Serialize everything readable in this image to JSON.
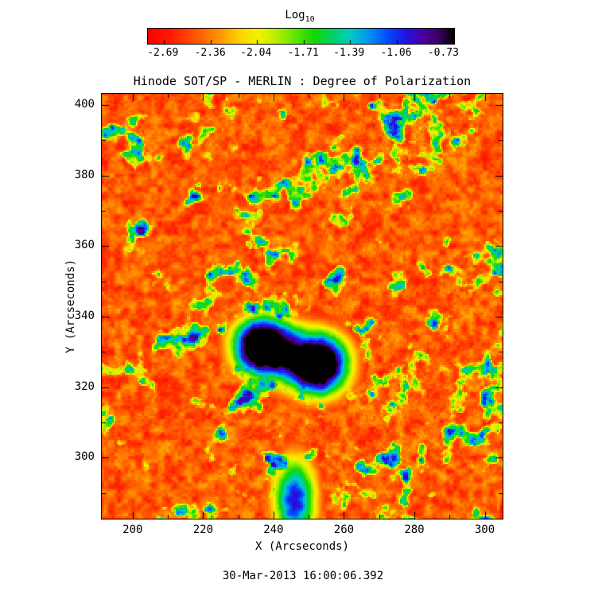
{
  "colorbar_title": {
    "main": "Log",
    "sub": "10"
  },
  "chart_data": {
    "type": "heatmap",
    "title": "Hinode SOT/SP - MERLIN : Degree of Polarization",
    "xlabel": "X (Arcseconds)",
    "ylabel": "Y (Arcseconds)",
    "timestamp": "30-Mar-2013 16:00:06.392",
    "x_range": [
      191.0,
      305.3
    ],
    "y_range": [
      282.5,
      403.4
    ],
    "x_ticks": [
      200,
      220,
      240,
      260,
      280,
      300
    ],
    "y_ticks": [
      300,
      320,
      340,
      360,
      380,
      400
    ],
    "x_minor_step": 10,
    "y_minor_step": 10,
    "grid": false,
    "colorbar": {
      "label": "Log10",
      "position": "top",
      "ticks": [
        -2.69,
        -2.36,
        -2.04,
        -1.71,
        -1.39,
        -1.06,
        -0.73
      ],
      "tick_labels": [
        "-2.69",
        "-2.36",
        "-2.04",
        "-1.71",
        "-1.39",
        "-1.06",
        "-0.73"
      ],
      "range": [
        -2.8,
        -0.66
      ]
    },
    "value_range": [
      -2.8,
      -0.66
    ],
    "colormap": "reversed rainbow: red (low) through yellow, green, cyan, blue, purple to black (high)",
    "colormap_stops": [
      {
        "t": 0.0,
        "color": "#ff0000"
      },
      {
        "t": 0.08,
        "color": "#ff1e00"
      },
      {
        "t": 0.16,
        "color": "#ff5a00"
      },
      {
        "t": 0.24,
        "color": "#ff9c00"
      },
      {
        "t": 0.3,
        "color": "#ffd200"
      },
      {
        "t": 0.36,
        "color": "#f2f200"
      },
      {
        "t": 0.42,
        "color": "#b4f000"
      },
      {
        "t": 0.48,
        "color": "#64e600"
      },
      {
        "t": 0.54,
        "color": "#14d800"
      },
      {
        "t": 0.6,
        "color": "#00d264"
      },
      {
        "t": 0.66,
        "color": "#00ccbe"
      },
      {
        "t": 0.72,
        "color": "#0096f0"
      },
      {
        "t": 0.78,
        "color": "#0050ff"
      },
      {
        "t": 0.84,
        "color": "#1e14e6"
      },
      {
        "t": 0.9,
        "color": "#4b00a0"
      },
      {
        "t": 0.95,
        "color": "#3c0064"
      },
      {
        "t": 1.0,
        "color": "#000000"
      }
    ],
    "features": {
      "description": "Quiet-Sun background of low polarization (red, ~10^-2.7) granulation threaded by green-cyan magnetic network patches with small saturated blue flux concentrations; a sunspot pair near field centre shows near-black umbrae (~10^-0.8) ringed by blue-cyan penumbral halos, plus a blue flux plume near the bottom centre.",
      "sunspots": [
        {
          "x_arcsec": 237.0,
          "y_arcsec": 331.5,
          "sigma_arcsec": 6.0,
          "amplitude": 1.42
        },
        {
          "x_arcsec": 252.5,
          "y_arcsec": 326.5,
          "sigma_arcsec": 6.2,
          "amplitude": 1.42
        }
      ],
      "plumes": [
        {
          "x_arcsec": 246.0,
          "y_arcsec": 288.0,
          "sigma_x": 4.5,
          "sigma_y": 9.0,
          "amplitude": 0.85
        }
      ],
      "noise_seed": 11
    }
  }
}
